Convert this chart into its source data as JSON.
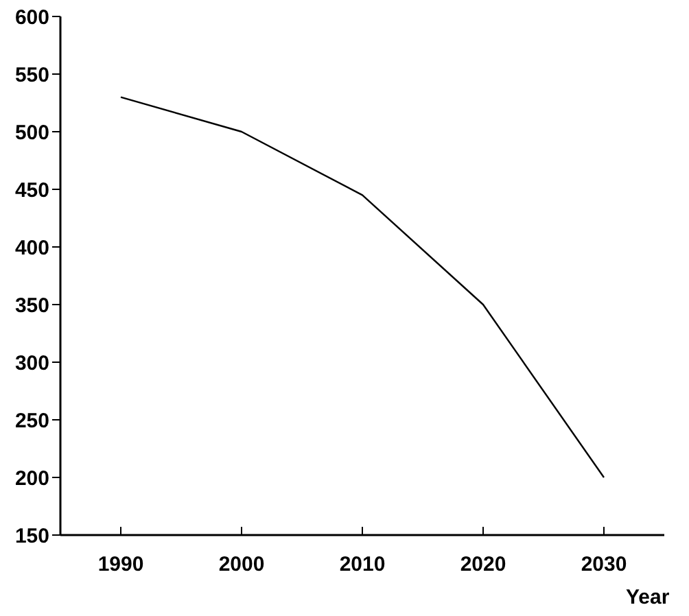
{
  "chart_data": {
    "type": "line",
    "xlabel": "Year",
    "x": [
      1990,
      2000,
      2010,
      2020,
      2030
    ],
    "values": [
      530,
      500,
      445,
      350,
      200
    ],
    "color": "#000000",
    "xlim": [
      1985,
      2035
    ],
    "xticks": [
      1990,
      2000,
      2010,
      2020,
      2030
    ],
    "ylim": [
      150,
      600
    ],
    "yticks": [
      150,
      200,
      250,
      300,
      350,
      400,
      450,
      500,
      550,
      600
    ],
    "marker": "none",
    "line_style": "solid"
  }
}
